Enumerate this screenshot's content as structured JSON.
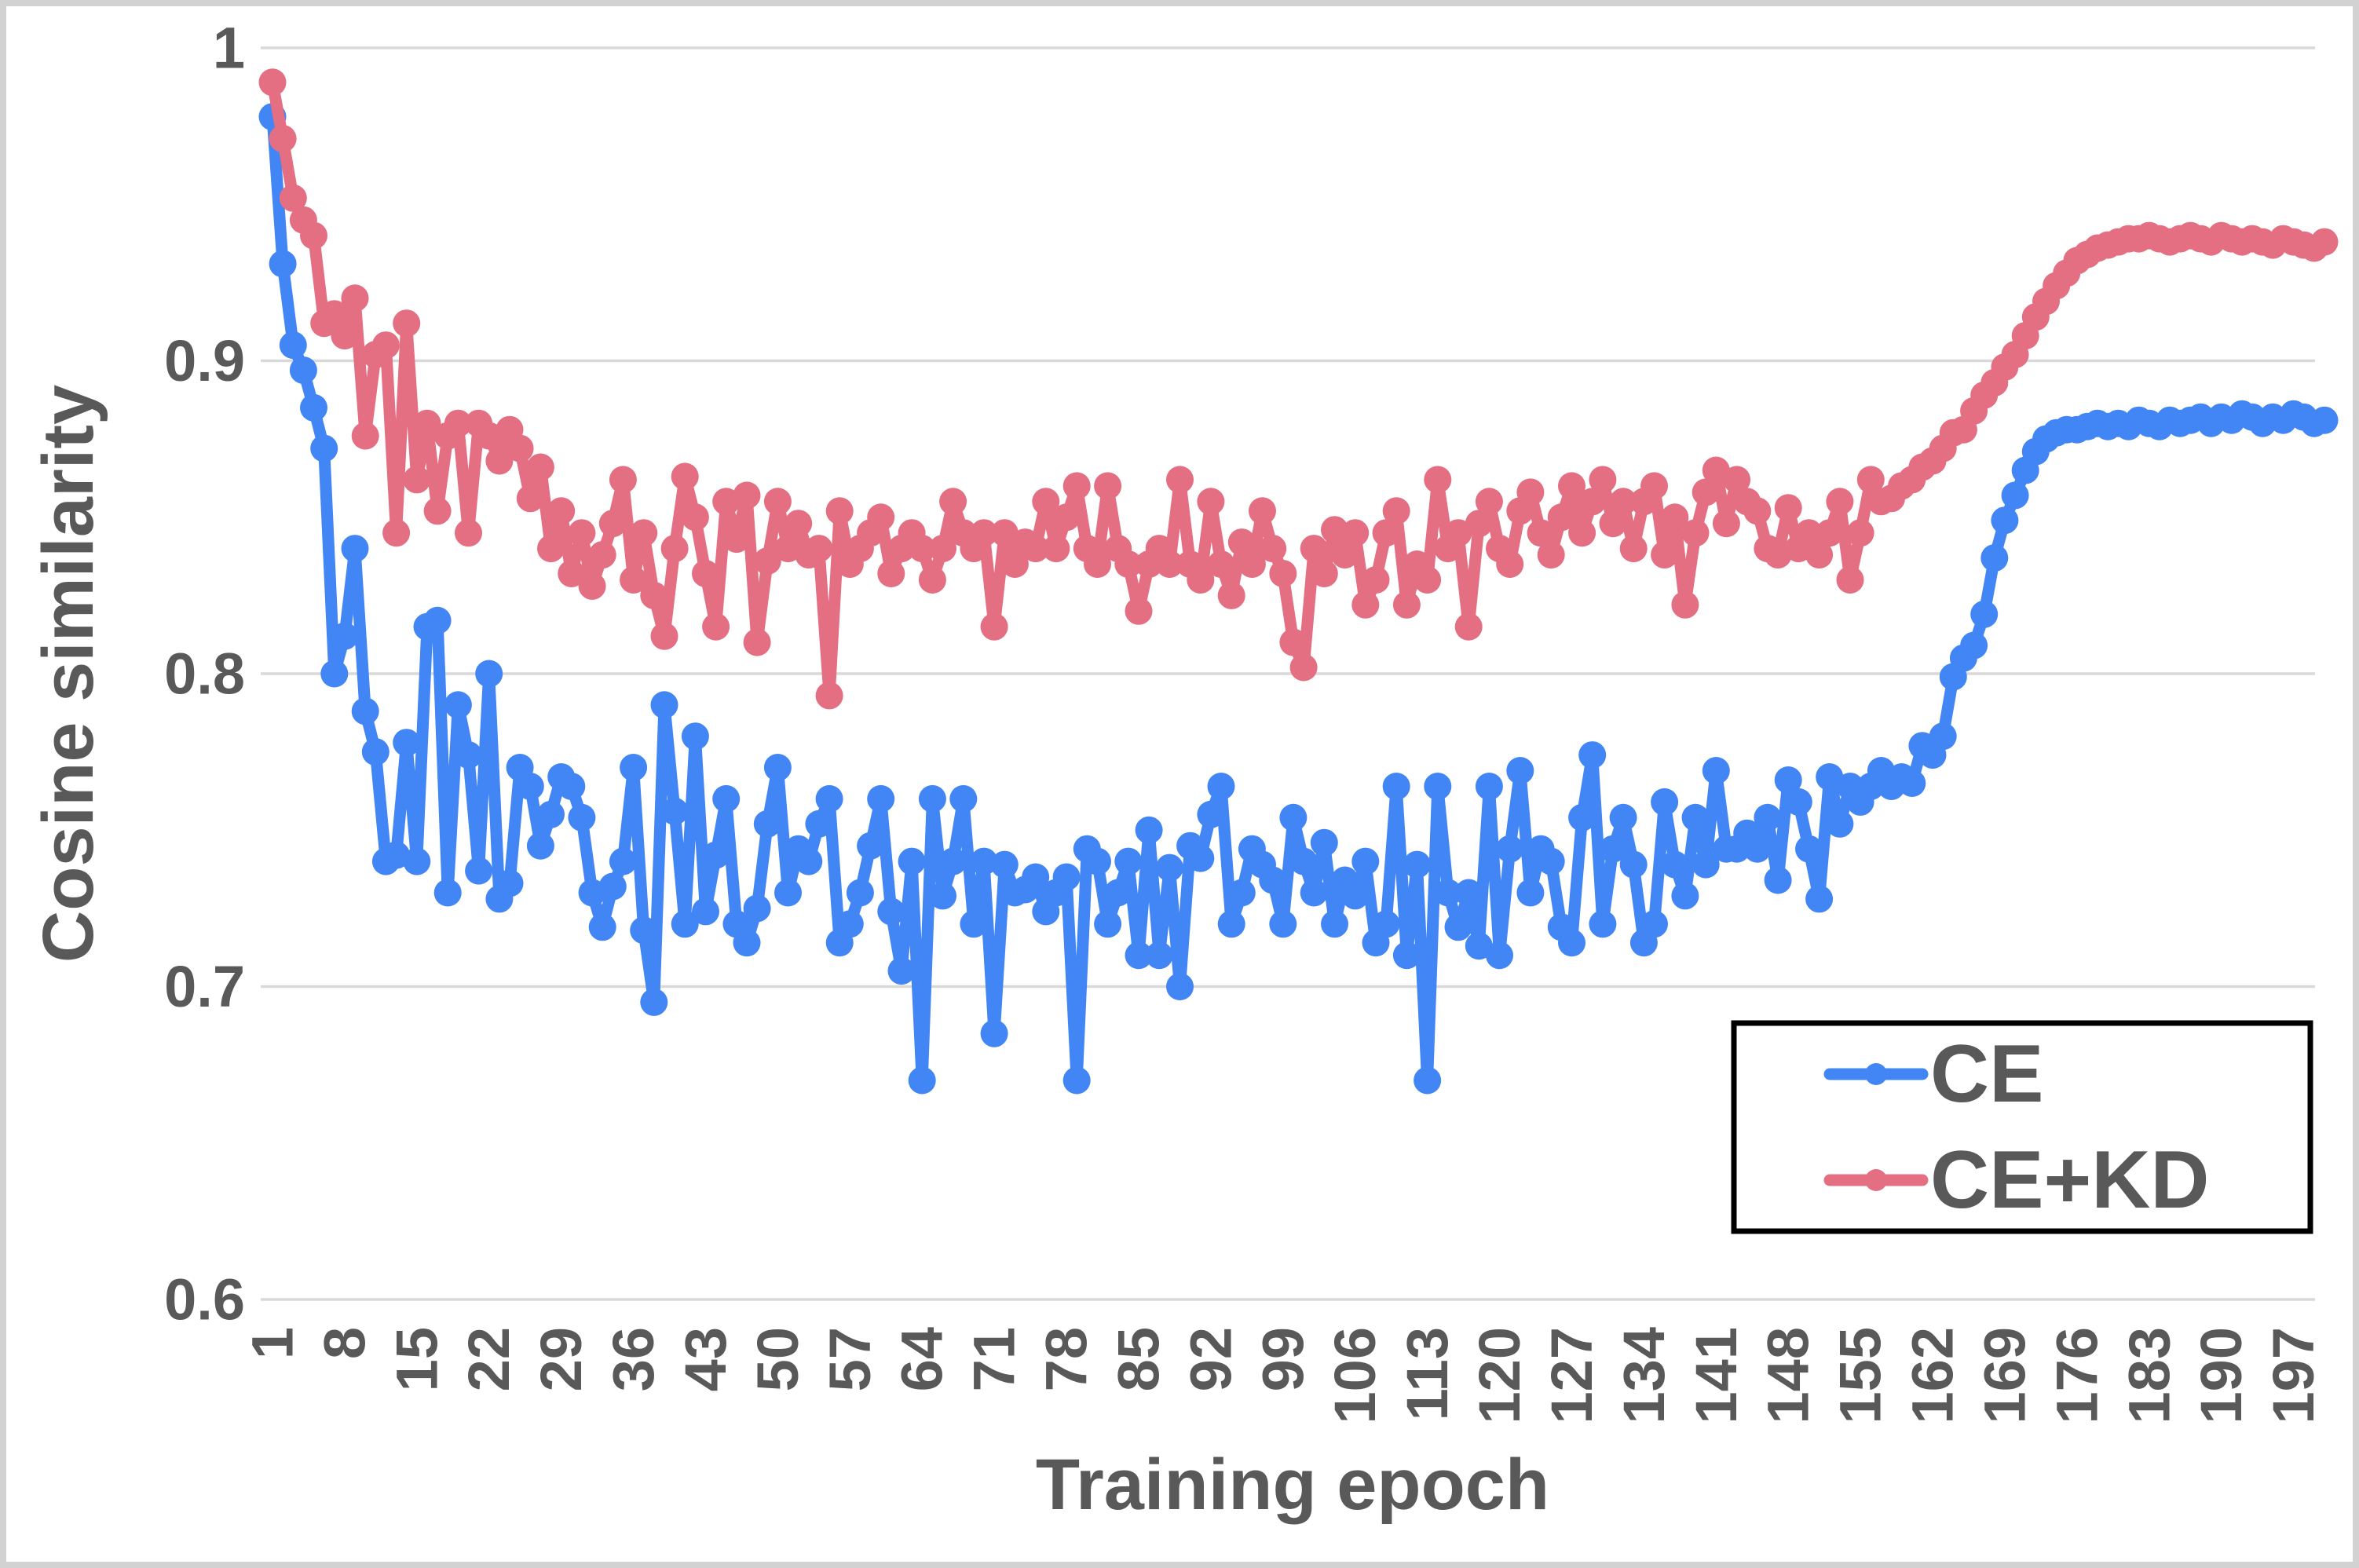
{
  "chart_data": {
    "type": "line",
    "title": "",
    "xlabel": "Training epoch",
    "ylabel": "Cosine similarity",
    "x_range": [
      1,
      200
    ],
    "ylim": [
      0.6,
      1.0
    ],
    "grid": "horizontal-only",
    "legend_position": "inside-bottom-right",
    "y_tick_labels": [
      "1",
      "0.9",
      "0.8",
      "0.7",
      "0.6"
    ],
    "y_tick_values": [
      1.0,
      0.9,
      0.8,
      0.7,
      0.6
    ],
    "x_tick_labels": [
      "1",
      "8",
      "15",
      "22",
      "29",
      "36",
      "43",
      "50",
      "57",
      "64",
      "71",
      "78",
      "85",
      "92",
      "99",
      "106",
      "113",
      "120",
      "127",
      "134",
      "141",
      "148",
      "155",
      "162",
      "169",
      "176",
      "183",
      "190",
      "197"
    ],
    "colors": {
      "text": "#595959",
      "grid": "#d9d9d9",
      "legend_border": "#000000",
      "frame_border": "#d2d2d2",
      "background": "#ffffff"
    },
    "series": [
      {
        "name": "CE",
        "color": "#4285f4",
        "values": [
          0.978,
          0.931,
          0.905,
          0.897,
          0.885,
          0.872,
          0.8,
          0.812,
          0.84,
          0.788,
          0.775,
          0.74,
          0.742,
          0.778,
          0.74,
          0.815,
          0.817,
          0.73,
          0.79,
          0.774,
          0.737,
          0.8,
          0.728,
          0.733,
          0.77,
          0.764,
          0.745,
          0.755,
          0.767,
          0.764,
          0.754,
          0.73,
          0.719,
          0.732,
          0.74,
          0.77,
          0.718,
          0.695,
          0.79,
          0.756,
          0.72,
          0.78,
          0.724,
          0.742,
          0.76,
          0.72,
          0.714,
          0.725,
          0.752,
          0.77,
          0.73,
          0.744,
          0.74,
          0.752,
          0.76,
          0.714,
          0.72,
          0.73,
          0.745,
          0.76,
          0.724,
          0.705,
          0.74,
          0.67,
          0.76,
          0.729,
          0.74,
          0.76,
          0.72,
          0.74,
          0.685,
          0.739,
          0.73,
          0.731,
          0.735,
          0.724,
          0.73,
          0.735,
          0.67,
          0.744,
          0.74,
          0.72,
          0.73,
          0.74,
          0.71,
          0.75,
          0.71,
          0.738,
          0.7,
          0.745,
          0.741,
          0.755,
          0.764,
          0.72,
          0.73,
          0.744,
          0.739,
          0.734,
          0.72,
          0.754,
          0.74,
          0.73,
          0.746,
          0.72,
          0.734,
          0.729,
          0.74,
          0.714,
          0.72,
          0.764,
          0.71,
          0.739,
          0.67,
          0.764,
          0.73,
          0.719,
          0.73,
          0.713,
          0.764,
          0.71,
          0.744,
          0.769,
          0.73,
          0.744,
          0.74,
          0.719,
          0.714,
          0.754,
          0.774,
          0.72,
          0.744,
          0.754,
          0.739,
          0.714,
          0.72,
          0.759,
          0.739,
          0.729,
          0.754,
          0.739,
          0.769,
          0.744,
          0.744,
          0.749,
          0.744,
          0.754,
          0.734,
          0.766,
          0.759,
          0.744,
          0.728,
          0.767,
          0.752,
          0.764,
          0.759,
          0.764,
          0.769,
          0.764,
          0.767,
          0.765,
          0.777,
          0.774,
          0.78,
          0.799,
          0.805,
          0.809,
          0.819,
          0.837,
          0.849,
          0.857,
          0.865,
          0.871,
          0.875,
          0.877,
          0.878,
          0.878,
          0.879,
          0.88,
          0.879,
          0.88,
          0.879,
          0.881,
          0.88,
          0.879,
          0.881,
          0.88,
          0.881,
          0.882,
          0.88,
          0.882,
          0.881,
          0.883,
          0.882,
          0.88,
          0.882,
          0.881,
          0.883,
          0.882,
          0.88,
          0.881
        ]
      },
      {
        "name": "CE+KD",
        "color": "#e46e82",
        "values": [
          0.989,
          0.971,
          0.952,
          0.945,
          0.94,
          0.912,
          0.915,
          0.908,
          0.92,
          0.876,
          0.902,
          0.905,
          0.845,
          0.912,
          0.862,
          0.88,
          0.852,
          0.876,
          0.88,
          0.845,
          0.88,
          0.876,
          0.868,
          0.878,
          0.872,
          0.856,
          0.866,
          0.84,
          0.852,
          0.832,
          0.845,
          0.828,
          0.838,
          0.848,
          0.862,
          0.83,
          0.845,
          0.825,
          0.812,
          0.84,
          0.863,
          0.85,
          0.832,
          0.815,
          0.855,
          0.843,
          0.857,
          0.81,
          0.836,
          0.855,
          0.84,
          0.848,
          0.838,
          0.84,
          0.793,
          0.852,
          0.835,
          0.84,
          0.845,
          0.85,
          0.832,
          0.84,
          0.845,
          0.84,
          0.83,
          0.84,
          0.855,
          0.845,
          0.84,
          0.845,
          0.815,
          0.845,
          0.835,
          0.842,
          0.84,
          0.855,
          0.84,
          0.85,
          0.86,
          0.84,
          0.835,
          0.86,
          0.84,
          0.835,
          0.82,
          0.835,
          0.84,
          0.835,
          0.862,
          0.835,
          0.83,
          0.855,
          0.835,
          0.825,
          0.842,
          0.835,
          0.852,
          0.84,
          0.832,
          0.81,
          0.802,
          0.84,
          0.832,
          0.846,
          0.838,
          0.845,
          0.822,
          0.83,
          0.845,
          0.852,
          0.822,
          0.835,
          0.83,
          0.862,
          0.84,
          0.845,
          0.815,
          0.848,
          0.855,
          0.84,
          0.835,
          0.852,
          0.858,
          0.845,
          0.838,
          0.85,
          0.86,
          0.845,
          0.855,
          0.862,
          0.848,
          0.855,
          0.84,
          0.855,
          0.86,
          0.838,
          0.85,
          0.822,
          0.845,
          0.858,
          0.865,
          0.848,
          0.862,
          0.855,
          0.852,
          0.84,
          0.838,
          0.853,
          0.84,
          0.845,
          0.838,
          0.845,
          0.855,
          0.83,
          0.845,
          0.862,
          0.855,
          0.856,
          0.86,
          0.862,
          0.866,
          0.868,
          0.872,
          0.877,
          0.878,
          0.884,
          0.889,
          0.893,
          0.898,
          0.902,
          0.908,
          0.914,
          0.919,
          0.924,
          0.928,
          0.932,
          0.934,
          0.936,
          0.937,
          0.938,
          0.939,
          0.939,
          0.94,
          0.939,
          0.938,
          0.939,
          0.94,
          0.939,
          0.938,
          0.94,
          0.939,
          0.938,
          0.939,
          0.938,
          0.937,
          0.939,
          0.938,
          0.937,
          0.936,
          0.938
        ]
      }
    ]
  }
}
